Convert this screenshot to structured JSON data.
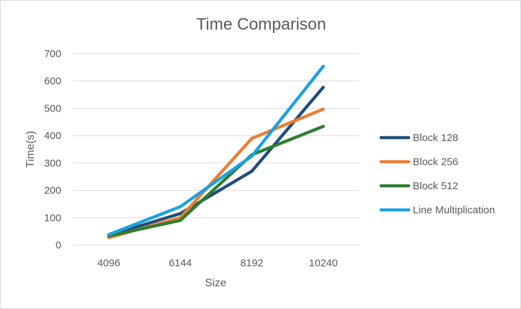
{
  "chart_data": {
    "type": "line",
    "title": "Time Comparison",
    "xlabel": "Size",
    "ylabel": "Time(s)",
    "categories": [
      "4096",
      "6144",
      "8192",
      "10240"
    ],
    "ylim": [
      0,
      700
    ],
    "yticks": [
      0,
      100,
      200,
      300,
      400,
      500,
      600,
      700
    ],
    "grid": true,
    "legend_position": "right",
    "series": [
      {
        "name": "Block 128",
        "color": "#1f4e79",
        "values": [
          35,
          115,
          270,
          577
        ]
      },
      {
        "name": "Block 256",
        "color": "#ed7d31",
        "values": [
          27,
          100,
          390,
          497
        ]
      },
      {
        "name": "Block 512",
        "color": "#2e7d32",
        "values": [
          33,
          90,
          330,
          434
        ]
      },
      {
        "name": "Line Multiplication",
        "color": "#1ba1e2",
        "values": [
          38,
          140,
          325,
          654
        ]
      }
    ]
  }
}
